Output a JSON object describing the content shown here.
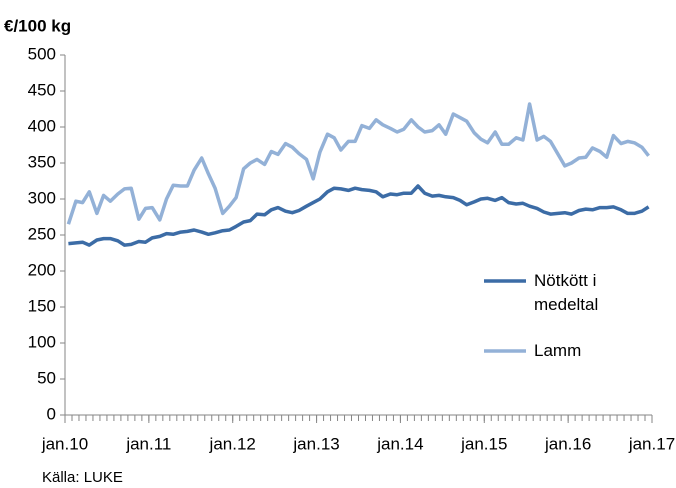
{
  "chart_data": {
    "type": "line",
    "title": "€/100 kg",
    "source": "Källa: LUKE",
    "xlim": [
      2010,
      2017
    ],
    "xticks": [
      {
        "value": 2010,
        "label": "jan.10"
      },
      {
        "value": 2011,
        "label": "jan.11"
      },
      {
        "value": 2012,
        "label": "jan.12"
      },
      {
        "value": 2013,
        "label": "jan.13"
      },
      {
        "value": 2014,
        "label": "jan.14"
      },
      {
        "value": 2015,
        "label": "jan.15"
      },
      {
        "value": 2016,
        "label": "jan.16"
      },
      {
        "value": 2017,
        "label": "jan.17"
      }
    ],
    "ylim": [
      0,
      500
    ],
    "yticks": [
      0,
      50,
      100,
      150,
      200,
      250,
      300,
      350,
      400,
      450,
      500
    ],
    "grid": false,
    "legend": "right",
    "x": [
      2010.04,
      2010.13,
      2010.21,
      2010.29,
      2010.38,
      2010.46,
      2010.54,
      2010.63,
      2010.71,
      2010.79,
      2010.88,
      2010.96,
      2011.04,
      2011.13,
      2011.21,
      2011.29,
      2011.38,
      2011.46,
      2011.54,
      2011.63,
      2011.71,
      2011.79,
      2011.88,
      2011.96,
      2012.04,
      2012.13,
      2012.21,
      2012.29,
      2012.38,
      2012.46,
      2012.54,
      2012.63,
      2012.71,
      2012.79,
      2012.88,
      2012.96,
      2013.04,
      2013.13,
      2013.21,
      2013.29,
      2013.38,
      2013.46,
      2013.54,
      2013.63,
      2013.71,
      2013.79,
      2013.88,
      2013.96,
      2014.04,
      2014.13,
      2014.21,
      2014.29,
      2014.38,
      2014.46,
      2014.54,
      2014.63,
      2014.71,
      2014.79,
      2014.88,
      2014.96,
      2015.04,
      2015.13,
      2015.21,
      2015.29,
      2015.38,
      2015.46,
      2015.54,
      2015.63,
      2015.71,
      2015.79,
      2015.88,
      2015.96,
      2016.04,
      2016.13,
      2016.21,
      2016.29,
      2016.38,
      2016.46,
      2016.54,
      2016.63,
      2016.71,
      2016.79,
      2016.88,
      2016.96
    ],
    "series": [
      {
        "name": "Nötkött i medeltal",
        "color": "#3c6ca6",
        "width": 3.5,
        "values": [
          238,
          239,
          240,
          236,
          243,
          245,
          245,
          242,
          236,
          237,
          241,
          240,
          246,
          248,
          252,
          251,
          254,
          255,
          257,
          254,
          251,
          253,
          256,
          257,
          262,
          268,
          270,
          279,
          278,
          285,
          288,
          283,
          281,
          284,
          290,
          295,
          300,
          310,
          315,
          314,
          312,
          315,
          313,
          312,
          310,
          303,
          307,
          306,
          308,
          308,
          318,
          308,
          304,
          305,
          303,
          302,
          298,
          292,
          296,
          300,
          301,
          298,
          302,
          295,
          293,
          294,
          290,
          287,
          282,
          279,
          280,
          281,
          279,
          284,
          286,
          285,
          288,
          288,
          289,
          285,
          280,
          280,
          283,
          289
        ]
      },
      {
        "name": "Lamm",
        "color": "#93b1d7",
        "width": 3.5,
        "values": [
          265,
          297,
          295,
          310,
          280,
          305,
          297,
          307,
          314,
          315,
          272,
          287,
          288,
          271,
          300,
          319,
          318,
          318,
          340,
          357,
          335,
          315,
          280,
          290,
          302,
          342,
          350,
          355,
          348,
          366,
          362,
          377,
          372,
          363,
          355,
          328,
          365,
          390,
          385,
          368,
          380,
          380,
          402,
          398,
          410,
          403,
          398,
          393,
          397,
          410,
          400,
          393,
          395,
          403,
          390,
          418,
          413,
          408,
          392,
          383,
          378,
          393,
          376,
          376,
          385,
          382,
          432,
          382,
          387,
          380,
          362,
          346,
          350,
          357,
          358,
          371,
          366,
          358,
          388,
          377,
          380,
          378,
          372,
          360
        ]
      }
    ]
  }
}
